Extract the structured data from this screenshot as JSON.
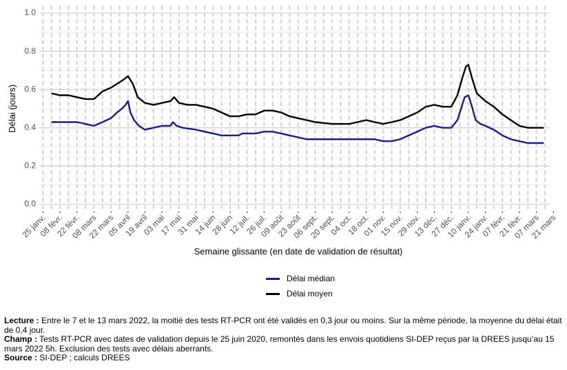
{
  "chart_data": {
    "type": "line",
    "xlabel": "Semaine glissante (en date de validation de résultat)",
    "ylabel": "Délai (jours)",
    "ylim": [
      0,
      1.0
    ],
    "yticks": [
      "0.0",
      "0.2",
      "0.4",
      "0.6",
      "0.8",
      "1.0"
    ],
    "x_range": [
      "2021-01-22",
      "2022-03-18"
    ],
    "grid": "on",
    "legend_position": "bottom",
    "xticks": [
      {
        "date": "2021-01-25",
        "label": "25 janv."
      },
      {
        "date": "2021-02-08",
        "label": "08 févr."
      },
      {
        "date": "2021-02-22",
        "label": "22 févr."
      },
      {
        "date": "2021-03-08",
        "label": "08 mars"
      },
      {
        "date": "2021-03-22",
        "label": "22 mars"
      },
      {
        "date": "2021-04-05",
        "label": "05 avril"
      },
      {
        "date": "2021-04-19",
        "label": "19 avril"
      },
      {
        "date": "2021-05-03",
        "label": "03 mai"
      },
      {
        "date": "2021-05-17",
        "label": "17 mai"
      },
      {
        "date": "2021-05-31",
        "label": "31 mai"
      },
      {
        "date": "2021-06-14",
        "label": "14 juin"
      },
      {
        "date": "2021-06-28",
        "label": "28 juin"
      },
      {
        "date": "2021-07-12",
        "label": "12 juil."
      },
      {
        "date": "2021-07-26",
        "label": "26 juil."
      },
      {
        "date": "2021-08-09",
        "label": "09 août"
      },
      {
        "date": "2021-08-23",
        "label": "23 août"
      },
      {
        "date": "2021-09-06",
        "label": "06 sept."
      },
      {
        "date": "2021-09-20",
        "label": "20 sept."
      },
      {
        "date": "2021-10-04",
        "label": "04 oct."
      },
      {
        "date": "2021-10-18",
        "label": "18 oct."
      },
      {
        "date": "2021-11-01",
        "label": "01 nov."
      },
      {
        "date": "2021-11-15",
        "label": "15 nov."
      },
      {
        "date": "2021-11-29",
        "label": "29 nov."
      },
      {
        "date": "2021-12-13",
        "label": "13 déc."
      },
      {
        "date": "2021-12-27",
        "label": "27 déc."
      },
      {
        "date": "2022-01-10",
        "label": "10 janv."
      },
      {
        "date": "2022-01-24",
        "label": "24 janv."
      },
      {
        "date": "2022-02-07",
        "label": "07 févr."
      },
      {
        "date": "2022-02-21",
        "label": "21 févr."
      },
      {
        "date": "2022-03-07",
        "label": "07 mars"
      },
      {
        "date": "2022-03-21",
        "label": "21 mars"
      }
    ],
    "series": [
      {
        "name": "Délai médian",
        "color": "#1a1a8c",
        "points": [
          [
            "2021-02-01",
            0.43
          ],
          [
            "2021-02-08",
            0.43
          ],
          [
            "2021-02-15",
            0.43
          ],
          [
            "2021-02-22",
            0.43
          ],
          [
            "2021-03-01",
            0.42
          ],
          [
            "2021-03-08",
            0.41
          ],
          [
            "2021-03-15",
            0.43
          ],
          [
            "2021-03-22",
            0.45
          ],
          [
            "2021-03-27",
            0.48
          ],
          [
            "2021-03-31",
            0.5
          ],
          [
            "2021-04-03",
            0.52
          ],
          [
            "2021-04-05",
            0.54
          ],
          [
            "2021-04-07",
            0.48
          ],
          [
            "2021-04-10",
            0.44
          ],
          [
            "2021-04-14",
            0.41
          ],
          [
            "2021-04-19",
            0.39
          ],
          [
            "2021-04-26",
            0.4
          ],
          [
            "2021-05-03",
            0.41
          ],
          [
            "2021-05-10",
            0.41
          ],
          [
            "2021-05-12",
            0.43
          ],
          [
            "2021-05-15",
            0.41
          ],
          [
            "2021-05-20",
            0.4
          ],
          [
            "2021-05-31",
            0.39
          ],
          [
            "2021-06-07",
            0.38
          ],
          [
            "2021-06-14",
            0.37
          ],
          [
            "2021-06-21",
            0.36
          ],
          [
            "2021-06-28",
            0.36
          ],
          [
            "2021-07-05",
            0.36
          ],
          [
            "2021-07-08",
            0.37
          ],
          [
            "2021-07-12",
            0.37
          ],
          [
            "2021-07-19",
            0.37
          ],
          [
            "2021-07-26",
            0.38
          ],
          [
            "2021-08-02",
            0.38
          ],
          [
            "2021-08-09",
            0.37
          ],
          [
            "2021-08-16",
            0.36
          ],
          [
            "2021-08-23",
            0.35
          ],
          [
            "2021-08-30",
            0.34
          ],
          [
            "2021-09-06",
            0.34
          ],
          [
            "2021-09-20",
            0.34
          ],
          [
            "2021-10-04",
            0.34
          ],
          [
            "2021-10-18",
            0.34
          ],
          [
            "2021-10-25",
            0.34
          ],
          [
            "2021-11-01",
            0.33
          ],
          [
            "2021-11-08",
            0.33
          ],
          [
            "2021-11-15",
            0.34
          ],
          [
            "2021-11-22",
            0.36
          ],
          [
            "2021-11-29",
            0.38
          ],
          [
            "2021-12-06",
            0.4
          ],
          [
            "2021-12-13",
            0.41
          ],
          [
            "2021-12-20",
            0.4
          ],
          [
            "2021-12-27",
            0.4
          ],
          [
            "2022-01-01",
            0.44
          ],
          [
            "2022-01-04",
            0.5
          ],
          [
            "2022-01-07",
            0.56
          ],
          [
            "2022-01-10",
            0.57
          ],
          [
            "2022-01-13",
            0.51
          ],
          [
            "2022-01-16",
            0.44
          ],
          [
            "2022-01-20",
            0.42
          ],
          [
            "2022-01-24",
            0.41
          ],
          [
            "2022-01-31",
            0.39
          ],
          [
            "2022-02-07",
            0.36
          ],
          [
            "2022-02-14",
            0.34
          ],
          [
            "2022-02-21",
            0.33
          ],
          [
            "2022-02-28",
            0.32
          ],
          [
            "2022-03-07",
            0.32
          ],
          [
            "2022-03-13",
            0.32
          ]
        ]
      },
      {
        "name": "Délai moyen",
        "color": "#000000",
        "points": [
          [
            "2021-02-01",
            0.58
          ],
          [
            "2021-02-08",
            0.57
          ],
          [
            "2021-02-15",
            0.57
          ],
          [
            "2021-02-22",
            0.56
          ],
          [
            "2021-03-01",
            0.55
          ],
          [
            "2021-03-08",
            0.55
          ],
          [
            "2021-03-15",
            0.59
          ],
          [
            "2021-03-22",
            0.61
          ],
          [
            "2021-03-27",
            0.63
          ],
          [
            "2021-04-01",
            0.65
          ],
          [
            "2021-04-05",
            0.67
          ],
          [
            "2021-04-09",
            0.63
          ],
          [
            "2021-04-13",
            0.56
          ],
          [
            "2021-04-19",
            0.53
          ],
          [
            "2021-04-26",
            0.52
          ],
          [
            "2021-05-03",
            0.53
          ],
          [
            "2021-05-10",
            0.54
          ],
          [
            "2021-05-13",
            0.56
          ],
          [
            "2021-05-17",
            0.53
          ],
          [
            "2021-05-24",
            0.52
          ],
          [
            "2021-05-31",
            0.52
          ],
          [
            "2021-06-07",
            0.51
          ],
          [
            "2021-06-14",
            0.5
          ],
          [
            "2021-06-21",
            0.48
          ],
          [
            "2021-06-28",
            0.46
          ],
          [
            "2021-07-05",
            0.46
          ],
          [
            "2021-07-12",
            0.47
          ],
          [
            "2021-07-19",
            0.47
          ],
          [
            "2021-07-26",
            0.49
          ],
          [
            "2021-08-02",
            0.49
          ],
          [
            "2021-08-09",
            0.48
          ],
          [
            "2021-08-16",
            0.46
          ],
          [
            "2021-08-23",
            0.45
          ],
          [
            "2021-08-30",
            0.44
          ],
          [
            "2021-09-06",
            0.43
          ],
          [
            "2021-09-20",
            0.42
          ],
          [
            "2021-10-04",
            0.42
          ],
          [
            "2021-10-18",
            0.44
          ],
          [
            "2021-10-25",
            0.43
          ],
          [
            "2021-11-01",
            0.42
          ],
          [
            "2021-11-08",
            0.43
          ],
          [
            "2021-11-15",
            0.44
          ],
          [
            "2021-11-22",
            0.46
          ],
          [
            "2021-11-29",
            0.48
          ],
          [
            "2021-12-06",
            0.51
          ],
          [
            "2021-12-13",
            0.52
          ],
          [
            "2021-12-20",
            0.51
          ],
          [
            "2021-12-27",
            0.51
          ],
          [
            "2022-01-01",
            0.57
          ],
          [
            "2022-01-05",
            0.66
          ],
          [
            "2022-01-08",
            0.72
          ],
          [
            "2022-01-10",
            0.73
          ],
          [
            "2022-01-13",
            0.66
          ],
          [
            "2022-01-17",
            0.58
          ],
          [
            "2022-01-24",
            0.54
          ],
          [
            "2022-01-31",
            0.51
          ],
          [
            "2022-02-07",
            0.47
          ],
          [
            "2022-02-14",
            0.44
          ],
          [
            "2022-02-21",
            0.41
          ],
          [
            "2022-02-28",
            0.4
          ],
          [
            "2022-03-07",
            0.4
          ],
          [
            "2022-03-13",
            0.4
          ]
        ]
      }
    ]
  },
  "notes": {
    "lecture_label": "Lecture :",
    "lecture_text": " Entre le 7 et le 13 mars 2022, la moitié des tests RT-PCR ont été validés en 0,3 jour ou moins. Sur la même période, la moyenne du délai était de 0,4 jour.",
    "champ_label": "Champ :",
    "champ_text": " Tests RT-PCR avec dates de validation depuis le 25 juin 2020, remontés dans les envois quotidiens SI-DEP reçus par la DREES jusqu’au 15 mars 2022 5h. Exclusion des tests avec délais aberrants.",
    "source_label": "Source :",
    "source_text": " SI-DEP ; calculs DREES"
  }
}
